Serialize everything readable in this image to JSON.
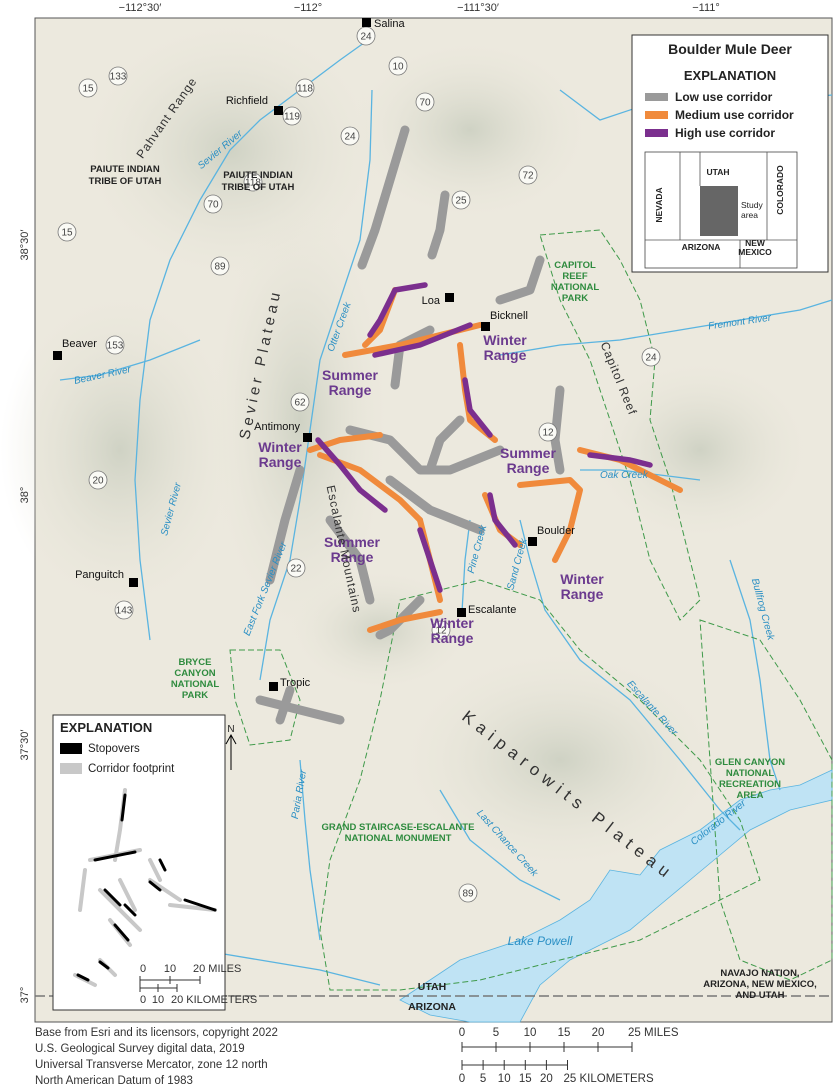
{
  "title": "Boulder Mule Deer",
  "legend": {
    "heading": "EXPLANATION",
    "items": [
      {
        "label": "Low use corridor",
        "color": "#9a9a9a"
      },
      {
        "label": "Medium use corridor",
        "color": "#f08a3c"
      },
      {
        "label": "High use corridor",
        "color": "#7b2f8e"
      }
    ]
  },
  "locator": {
    "states": [
      "UTAH",
      "NEVADA",
      "COLORADO",
      "ARIZONA",
      "NEW",
      "MEXICO"
    ],
    "study_area": [
      "Study",
      "area"
    ]
  },
  "longitudes": [
    "−112°30′",
    "−112°",
    "−111°30′",
    "−111°"
  ],
  "latitudes": [
    "38°30′",
    "38°",
    "37°30′",
    "37°"
  ],
  "towns": [
    "Salina",
    "Richfield",
    "Beaver",
    "Antimony",
    "Loa",
    "Bicknell",
    "Boulder",
    "Escalante",
    "Panguitch",
    "Tropic"
  ],
  "ranges": [
    [
      "Summer",
      "Range"
    ],
    [
      "Summer",
      "Range"
    ],
    [
      "Summer",
      "Range"
    ],
    [
      "Winter",
      "Range"
    ],
    [
      "Winter",
      "Range"
    ],
    [
      "Winter",
      "Range"
    ],
    [
      "Winter",
      "Range"
    ]
  ],
  "landforms": [
    "Pahvant Range",
    "Sevier Plateau",
    "Escalante Mountains",
    "Kaiparowits Plateau",
    "Capitol Reef"
  ],
  "rivers": [
    "Sevier River",
    "Otter Creek",
    "Beaver River",
    "Fremont River",
    "Oak Creek",
    "Pine Creek",
    "Sand Creek",
    "East Fork Sevier River",
    "Paria River",
    "Escalante River",
    "Bullfrog Creek",
    "Last Chance Creek",
    "Colorado River",
    "Lake Powell",
    "Sevier River"
  ],
  "areas": {
    "tribe": [
      [
        "PAIUTE INDIAN",
        "TRIBE OF UTAH"
      ],
      [
        "PAIUTE INDIAN",
        "TRIBE OF UTAH"
      ]
    ],
    "capitol_reef": [
      "CAPITOL",
      "REEF",
      "NATIONAL",
      "PARK"
    ],
    "bryce": [
      "BRYCE",
      "CANYON",
      "NATIONAL",
      "PARK"
    ],
    "glen_canyon": [
      "GLEN CANYON",
      "NATIONAL",
      "RECREATION",
      "AREA"
    ],
    "gsenm": [
      "GRAND STAIRCASE-ESCALANTE",
      "NATIONAL MONUMENT"
    ],
    "navajo": [
      "NAVAJO NATION,",
      "ARIZONA, NEW MEXICO,",
      "AND UTAH"
    ],
    "border": [
      "UTAH",
      "ARIZONA"
    ]
  },
  "roads": [
    "15",
    "133",
    "118",
    "119",
    "24",
    "10",
    "70",
    "72",
    "25",
    "118",
    "70",
    "15",
    "153",
    "62",
    "89",
    "20",
    "12",
    "143",
    "22",
    "12",
    "89",
    "24",
    "24"
  ],
  "inset": {
    "heading": "EXPLANATION",
    "items": [
      "Stopovers",
      "Corridor footprint"
    ],
    "north": "N",
    "miles": [
      "0",
      "10",
      "20 MILES"
    ],
    "km": [
      "0",
      "10",
      "20 KILOMETERS"
    ]
  },
  "credits": [
    "Base from Esri and its licensors, copyright 2022",
    "U.S. Geological Survey digital data, 2019",
    "Universal Transverse Mercator, zone 12 north",
    "North American Datum of 1983"
  ],
  "scale_bar": {
    "miles": [
      "0",
      "5",
      "10",
      "15",
      "20",
      "25 MILES"
    ],
    "km": [
      "0",
      "5",
      "10",
      "15",
      "20",
      "25 KILOMETERS"
    ]
  }
}
